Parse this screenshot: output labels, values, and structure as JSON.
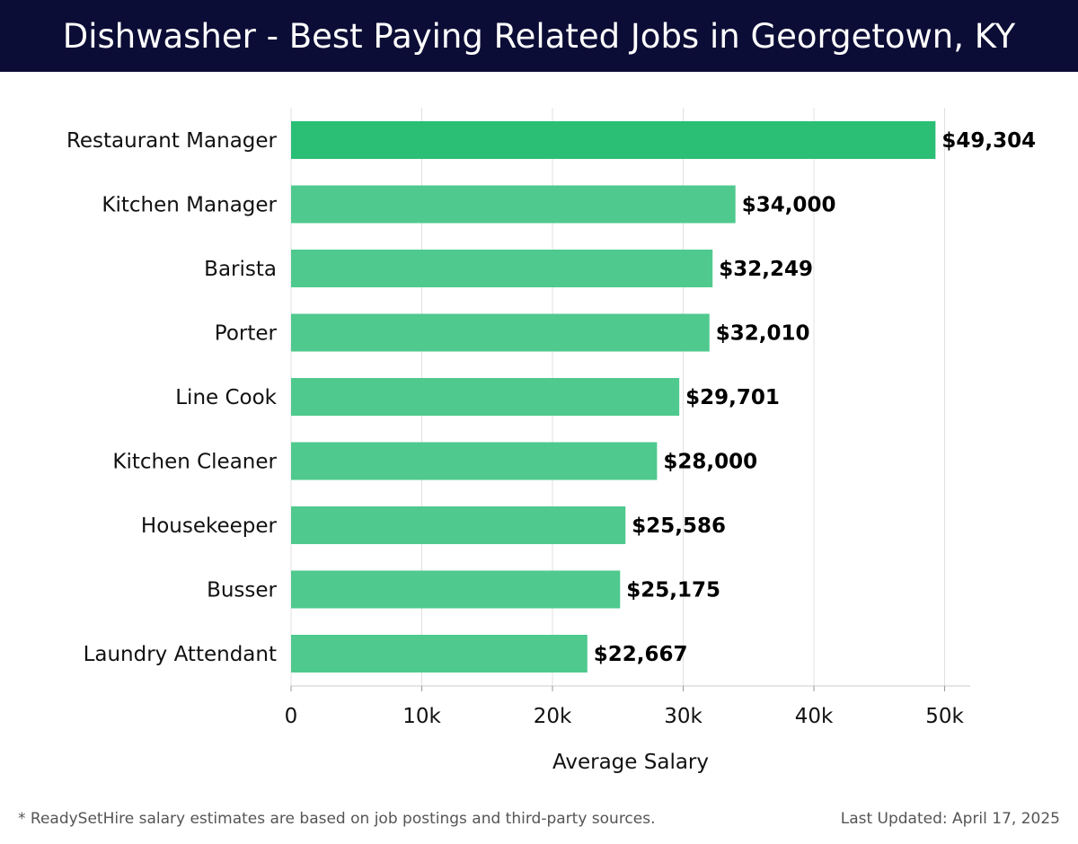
{
  "header": {
    "title": "Dishwasher - Best Paying Related Jobs in Georgetown, KY"
  },
  "footer": {
    "note": "* ReadySetHire salary estimates are based on job postings and third-party sources.",
    "last_updated": "Last Updated: April 17, 2025"
  },
  "colors": {
    "header_bg": "#0c0d36",
    "bar_top": "#2bbf76",
    "bar": "#4fc98e",
    "grid": "#e0e0e0"
  },
  "chart_data": {
    "type": "bar",
    "orientation": "horizontal",
    "categories": [
      "Restaurant Manager",
      "Kitchen Manager",
      "Barista",
      "Porter",
      "Line Cook",
      "Kitchen Cleaner",
      "Housekeeper",
      "Busser",
      "Laundry Attendant"
    ],
    "values": [
      49304,
      34000,
      32249,
      32010,
      29701,
      28000,
      25586,
      25175,
      22667
    ],
    "value_labels": [
      "$49,304",
      "$34,000",
      "$32,249",
      "$32,010",
      "$29,701",
      "$28,000",
      "$25,586",
      "$25,175",
      "$22,667"
    ],
    "xlabel": "Average Salary",
    "ylabel": "",
    "xlim": [
      0,
      52000
    ],
    "x_ticks": [
      0,
      10000,
      20000,
      30000,
      40000,
      50000
    ],
    "x_tick_labels": [
      "0",
      "10k",
      "20k",
      "30k",
      "40k",
      "50k"
    ],
    "grid": true
  }
}
